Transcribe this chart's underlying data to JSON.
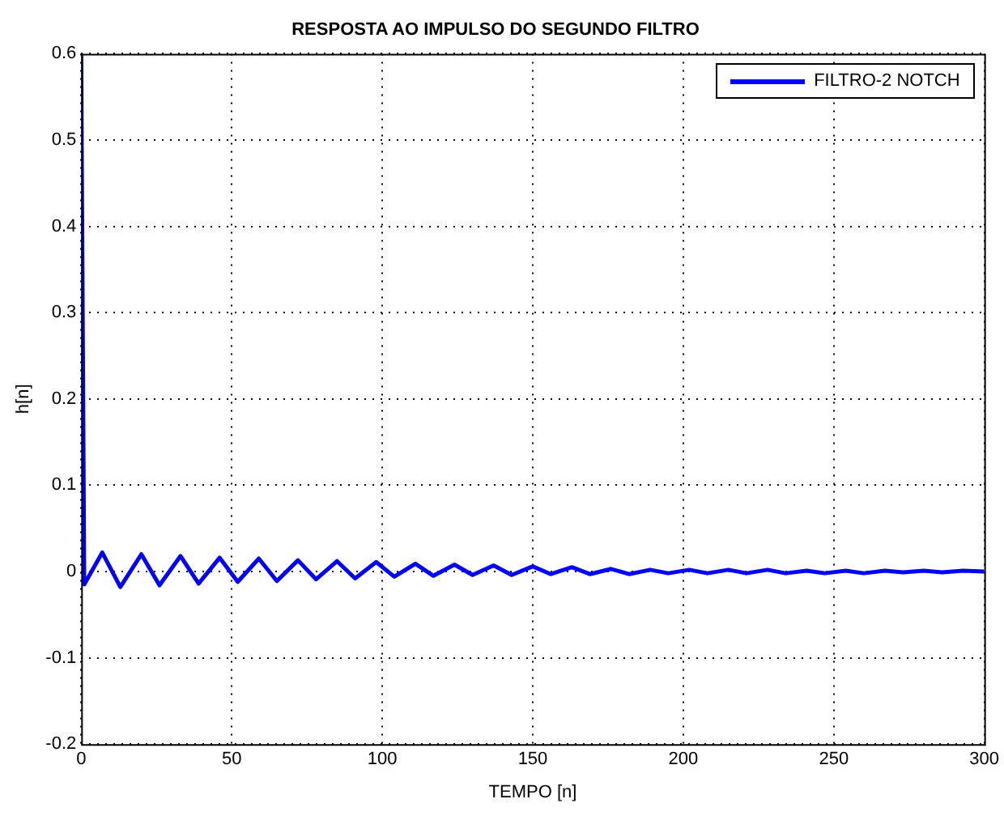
{
  "chart_data": {
    "type": "line",
    "title": "RESPOSTA AO IMPULSO DO SEGUNDO FILTRO",
    "xlabel": "TEMPO [n]",
    "ylabel": "h[n]",
    "xlim": [
      0,
      300
    ],
    "xticks": [
      0,
      50,
      100,
      150,
      200,
      250,
      300
    ],
    "ylim": [
      -0.2,
      0.6
    ],
    "yticks": [
      -0.2,
      -0.1,
      0,
      0.1,
      0.2,
      0.3,
      0.4,
      0.5,
      0.6
    ],
    "grid": true,
    "legend": "top right",
    "series": [
      {
        "name": "FILTRO-2 NOTCH",
        "color": "#0000ff",
        "x": [
          0,
          1,
          7,
          13,
          20,
          26,
          33,
          39,
          46,
          52,
          59,
          65,
          72,
          78,
          85,
          91,
          98,
          104,
          111,
          117,
          124,
          130,
          137,
          143,
          150,
          156,
          163,
          169,
          176,
          182,
          189,
          195,
          202,
          208,
          215,
          221,
          228,
          234,
          241,
          247,
          254,
          260,
          267,
          273,
          280,
          286,
          293,
          300
        ],
        "values": [
          0.6,
          -0.015,
          0.022,
          -0.018,
          0.02,
          -0.016,
          0.018,
          -0.014,
          0.016,
          -0.012,
          0.015,
          -0.011,
          0.013,
          -0.009,
          0.012,
          -0.008,
          0.011,
          -0.006,
          0.009,
          -0.005,
          0.008,
          -0.004,
          0.007,
          -0.004,
          0.006,
          -0.003,
          0.005,
          -0.003,
          0.003,
          -0.003,
          0.002,
          -0.002,
          0.002,
          -0.002,
          0.002,
          -0.002,
          0.002,
          -0.002,
          0.001,
          -0.002,
          0.001,
          -0.002,
          0.001,
          -0.001,
          0.001,
          -0.001,
          0.001,
          0
        ]
      }
    ]
  }
}
